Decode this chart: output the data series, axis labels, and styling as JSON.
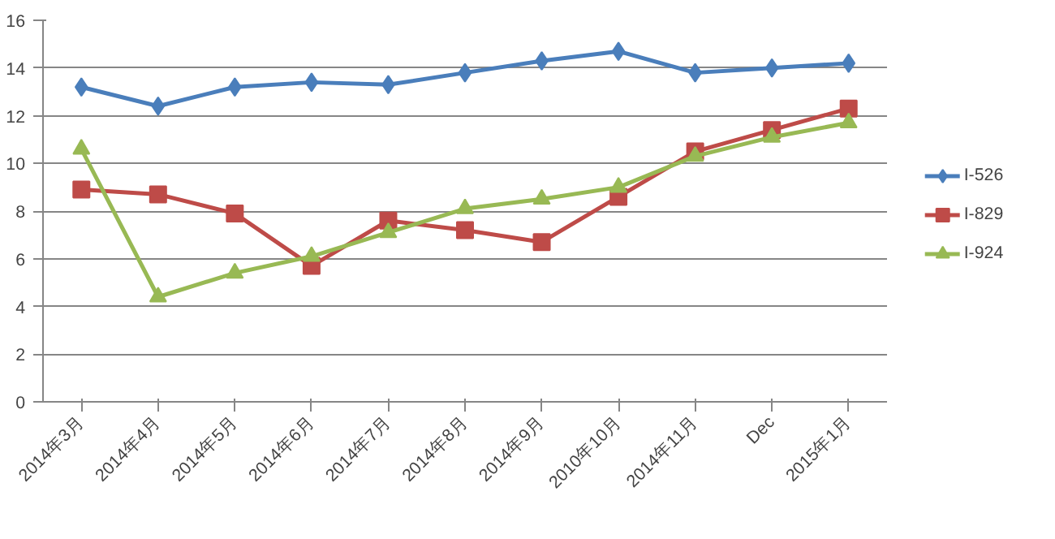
{
  "chart_data": {
    "type": "line",
    "categories": [
      "2014年3月",
      "2014年4月",
      "2014年5月",
      "2014年6月",
      "2014年7月",
      "2014年8月",
      "2014年9月",
      "2010年10月",
      "2014年11月",
      "Dec",
      "2015年1月"
    ],
    "series": [
      {
        "name": "I-526",
        "color": "#4a7ebb",
        "marker": "diamond",
        "values": [
          13.2,
          12.4,
          13.2,
          13.4,
          13.3,
          13.8,
          14.3,
          14.7,
          13.8,
          14.0,
          14.2
        ]
      },
      {
        "name": "I-829",
        "color": "#be4b48",
        "marker": "square",
        "values": [
          8.9,
          8.7,
          7.9,
          5.7,
          7.6,
          7.2,
          6.7,
          8.6,
          10.5,
          11.4,
          12.3
        ]
      },
      {
        "name": "I-924",
        "color": "#98b954",
        "marker": "triangle",
        "values": [
          10.6,
          4.4,
          5.4,
          6.1,
          7.1,
          8.1,
          8.5,
          9.0,
          10.3,
          11.1,
          11.7
        ]
      }
    ],
    "ylim": [
      0,
      16
    ],
    "yticks": [
      0,
      2,
      4,
      6,
      8,
      10,
      12,
      14,
      16
    ],
    "grid": "y",
    "legend": "right",
    "line_style": "solid"
  }
}
